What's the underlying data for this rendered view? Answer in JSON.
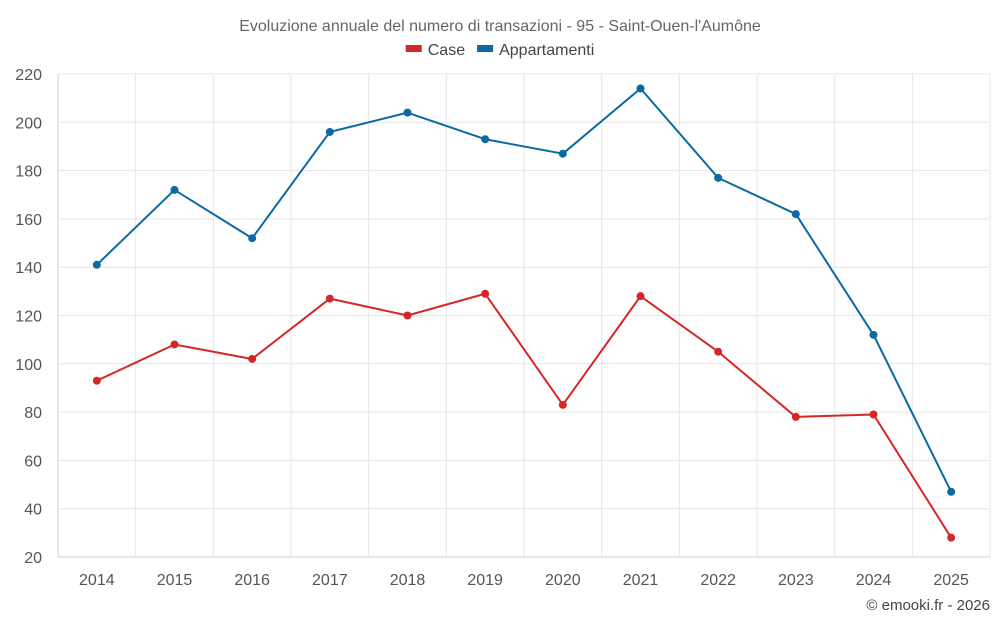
{
  "chart_data": {
    "type": "line",
    "title": "Evoluzione annuale del numero di transazioni - 95 - Saint-Ouen-l'Aumône",
    "categories": [
      "2014",
      "2015",
      "2016",
      "2017",
      "2018",
      "2019",
      "2020",
      "2021",
      "2022",
      "2023",
      "2024",
      "2025"
    ],
    "series": [
      {
        "name": "Case",
        "color": "#d62728",
        "values": [
          93,
          108,
          102,
          127,
          120,
          129,
          83,
          128,
          105,
          78,
          79,
          28
        ]
      },
      {
        "name": "Appartamenti",
        "color": "#0a6aa1",
        "values": [
          141,
          172,
          152,
          196,
          204,
          193,
          187,
          214,
          177,
          162,
          112,
          47
        ]
      }
    ],
    "ylim": [
      20,
      220
    ],
    "yticks": [
      20,
      40,
      60,
      80,
      100,
      120,
      140,
      160,
      180,
      200,
      220
    ],
    "xlabel": "",
    "ylabel": "",
    "grid": true,
    "legend_position": "top-center"
  },
  "credit": "© emooki.fr - 2026"
}
